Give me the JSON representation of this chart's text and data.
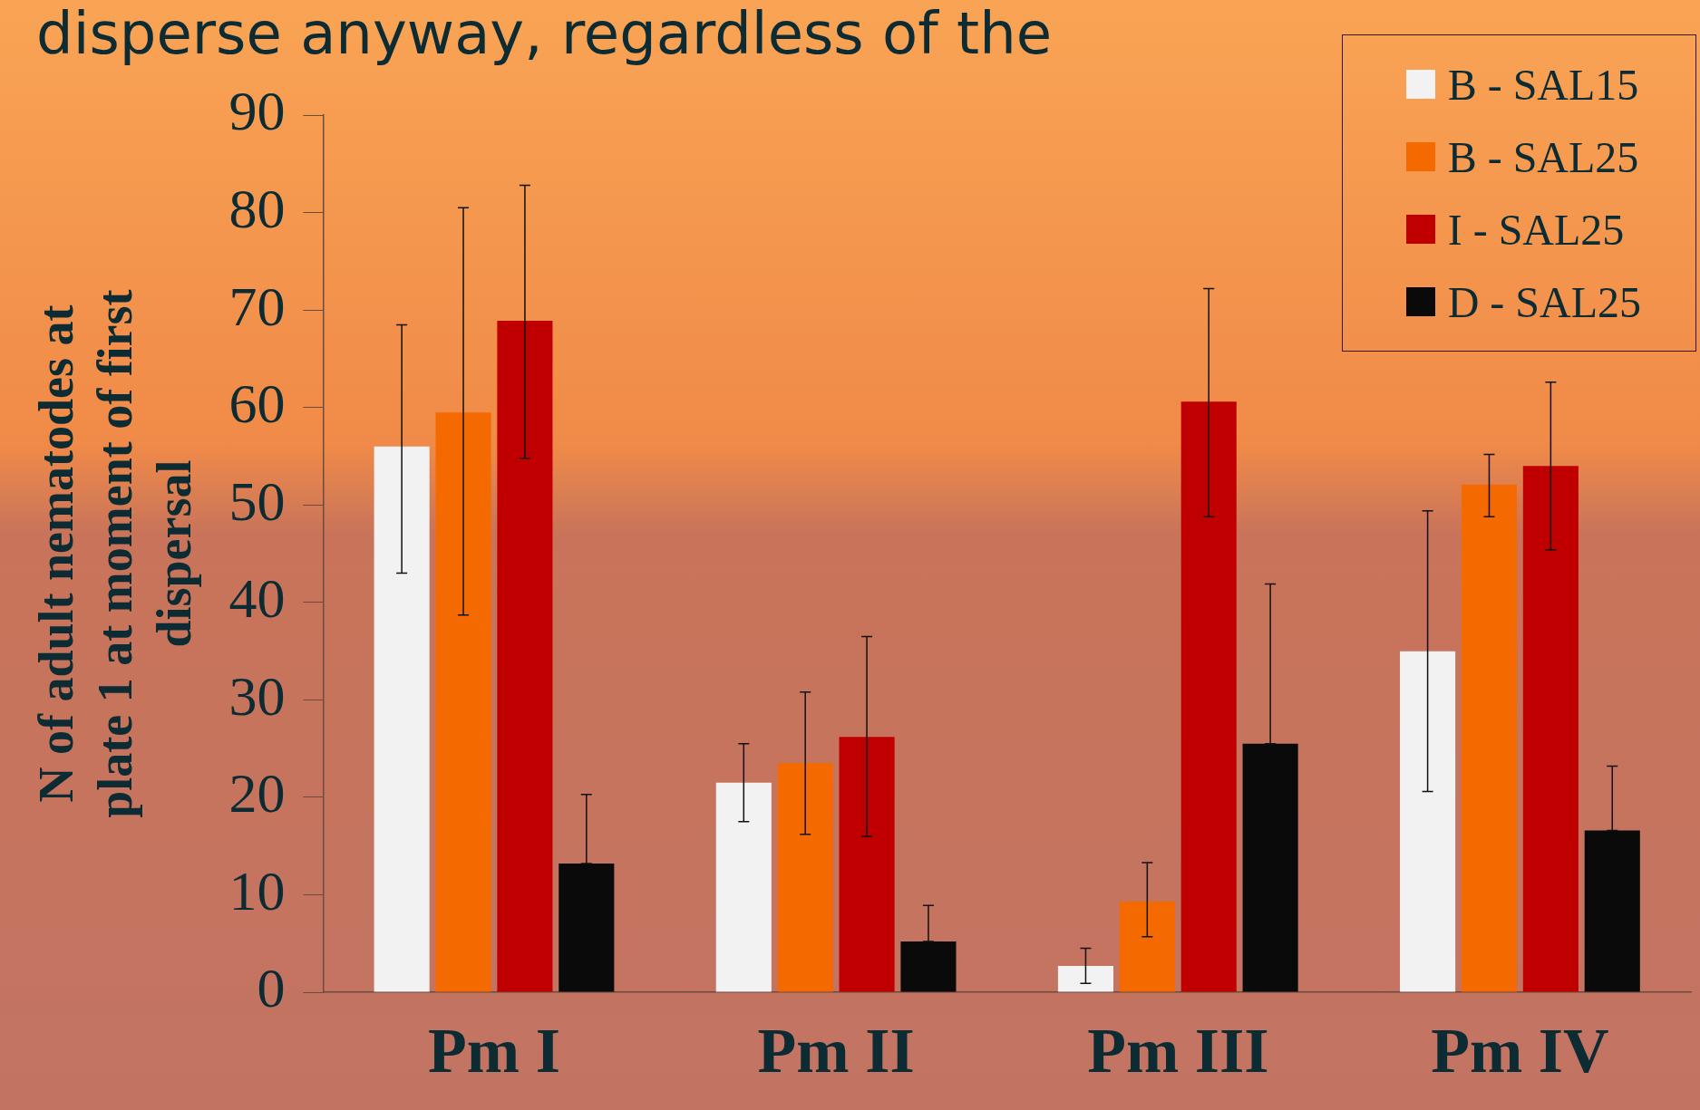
{
  "chart_data": {
    "type": "bar",
    "title": "disperse anyway, regardless of the",
    "ylabel": "N of adult nematodes at plate 1 at moment of first dispersal",
    "categories": [
      "Pm I",
      "Pm II",
      "Pm III",
      "Pm IV"
    ],
    "ylim": [
      0,
      90
    ],
    "yticks": [
      0,
      10,
      20,
      30,
      40,
      50,
      60,
      70,
      80,
      90
    ],
    "grid": false,
    "legend": "top right",
    "series": [
      {
        "name": "B - SAL15",
        "color": "#f2f2f2",
        "values": [
          56,
          21.5,
          2.7,
          35
        ],
        "errors": [
          [
            43,
            68.5
          ],
          [
            17.5,
            25.5
          ],
          [
            0.9,
            4.5
          ],
          [
            20.6,
            49.4
          ]
        ]
      },
      {
        "name": "B - SAL25",
        "color": "#f46a00",
        "values": [
          59.5,
          23.5,
          9.3,
          52.1
        ],
        "errors": [
          [
            38.7,
            80.5
          ],
          [
            16.2,
            30.8
          ],
          [
            5.7,
            13.3
          ],
          [
            48.8,
            55.2
          ]
        ]
      },
      {
        "name": "I - SAL25",
        "color": "#c00000",
        "values": [
          68.9,
          26.2,
          60.6,
          54
        ],
        "errors": [
          [
            54.8,
            82.8
          ],
          [
            16,
            36.5
          ],
          [
            48.8,
            72.2
          ],
          [
            45.4,
            62.6
          ]
        ]
      },
      {
        "name": "D - SAL25",
        "color": "#0a0a0a",
        "values": [
          13.2,
          5.2,
          25.5,
          16.6
        ],
        "errors": [
          [
            13.2,
            20.3
          ],
          [
            5.2,
            8.9
          ],
          [
            25.5,
            41.9
          ],
          [
            16.6,
            23.2
          ]
        ]
      }
    ]
  }
}
